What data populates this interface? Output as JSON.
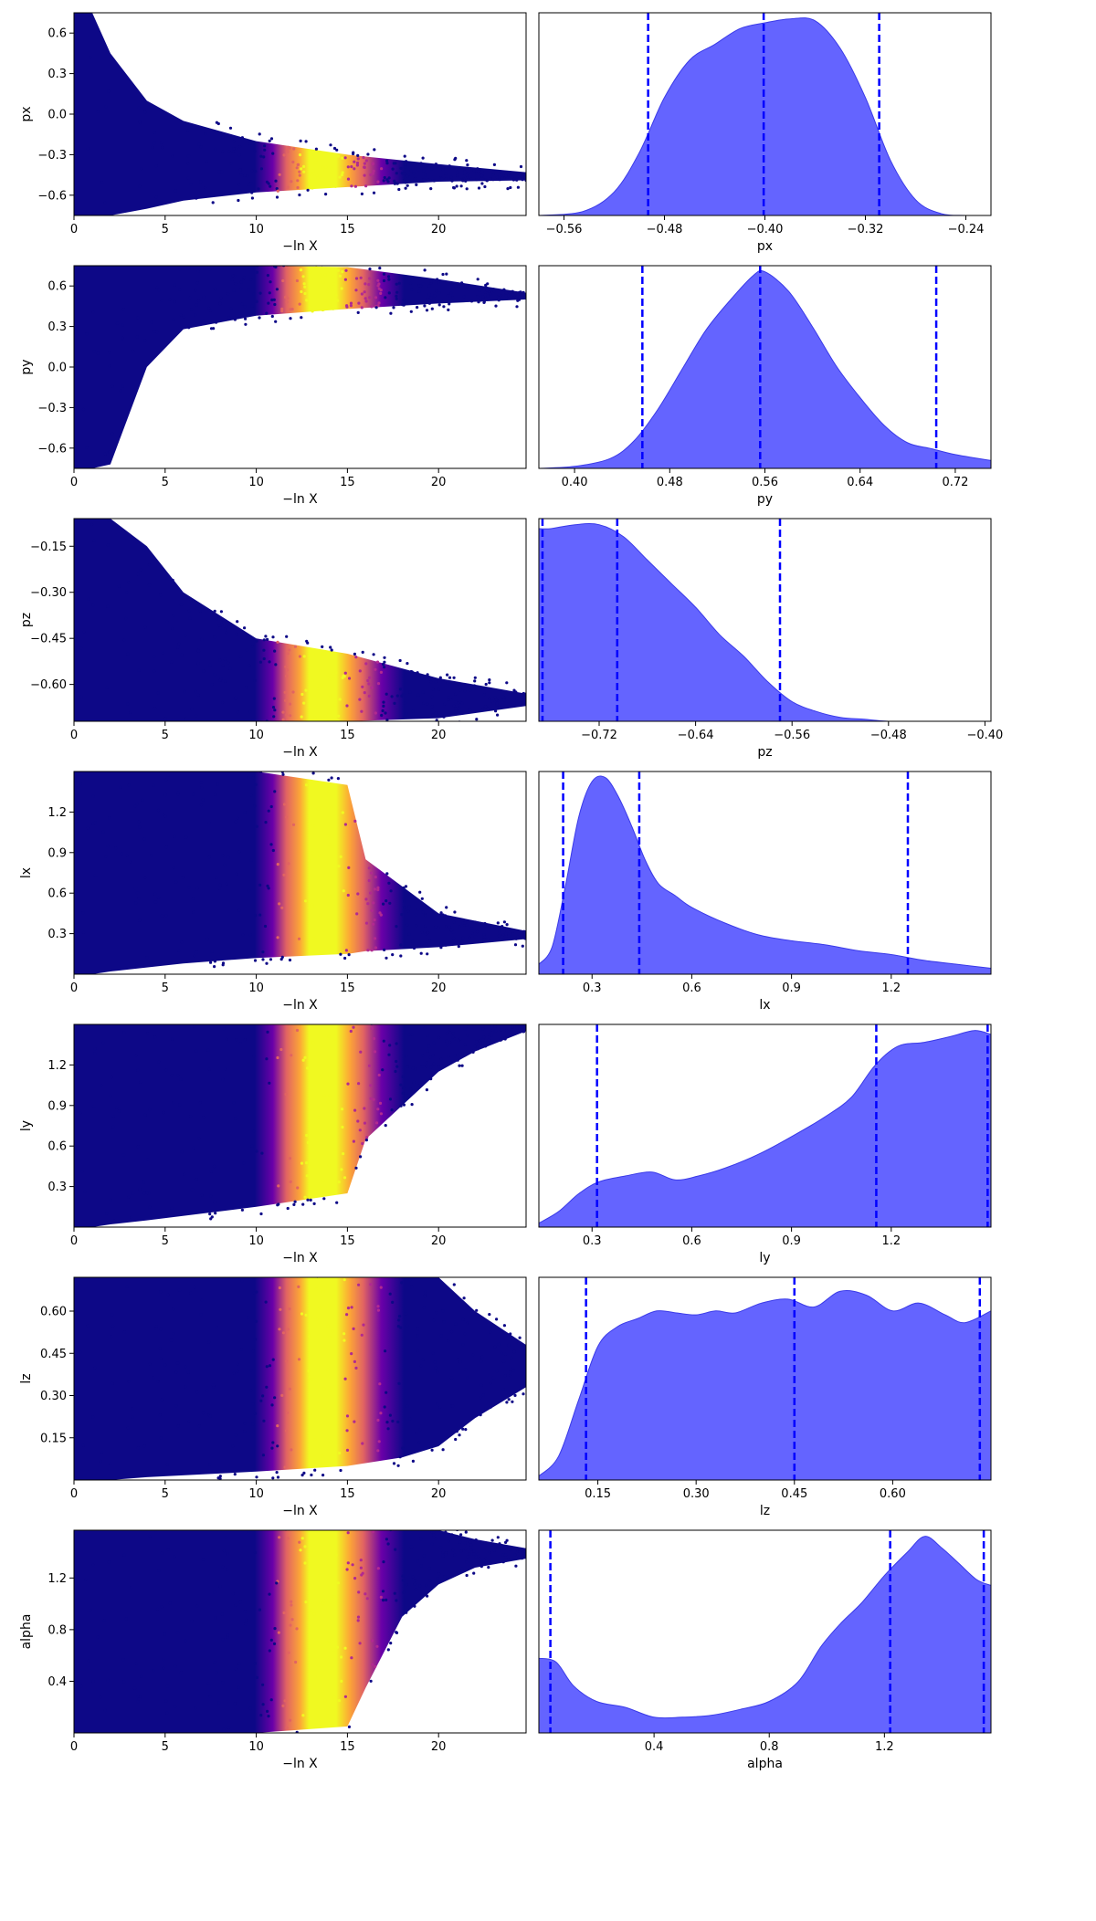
{
  "trace_xlabel": "−ln X",
  "colors": {
    "posterior_fill": "#6464ff",
    "posterior_edge": "#3a3ae8",
    "quantile_line": "#0000ff",
    "colormap": [
      "#0d0887",
      "#6a00a8",
      "#b12a90",
      "#e16462",
      "#fca636",
      "#f0f921"
    ]
  },
  "chart_data": [
    {
      "type": "scatter",
      "param": "px",
      "panel": "trace",
      "xlabel": "−ln X",
      "ylabel": "px",
      "xlim": [
        0,
        24.8
      ],
      "ylim": [
        -0.75,
        0.75
      ],
      "xticks": [
        0,
        5,
        10,
        15,
        20
      ],
      "yticks": [
        -0.6,
        -0.3,
        0.0,
        0.3,
        0.6
      ],
      "ytick_labels": [
        "−0.6",
        "−0.3",
        "0.0",
        "0.3",
        "0.6"
      ],
      "envelope": {
        "x": [
          0,
          1,
          2,
          4,
          6,
          10,
          15,
          20,
          24.8
        ],
        "lo": [
          -0.75,
          -0.75,
          -0.75,
          -0.7,
          -0.64,
          -0.58,
          -0.54,
          -0.5,
          -0.49
        ],
        "hi": [
          0.75,
          0.75,
          0.45,
          0.1,
          -0.05,
          -0.2,
          -0.3,
          -0.37,
          -0.43
        ]
      }
    },
    {
      "type": "area",
      "param": "px",
      "panel": "posterior",
      "xlabel": "px",
      "xlim": [
        -0.58,
        -0.22
      ],
      "xticks": [
        -0.56,
        -0.48,
        -0.4,
        -0.32,
        -0.24
      ],
      "xtick_labels": [
        "−0.56",
        "−0.48",
        "−0.40",
        "−0.32",
        "−0.24"
      ],
      "quantiles": [
        -0.493,
        -0.401,
        -0.309
      ],
      "x": [
        -0.58,
        -0.545,
        -0.52,
        -0.5,
        -0.48,
        -0.46,
        -0.44,
        -0.42,
        -0.4,
        -0.38,
        -0.36,
        -0.34,
        -0.32,
        -0.3,
        -0.28,
        -0.26,
        -0.24,
        -0.22
      ],
      "y": [
        0.0,
        0.02,
        0.12,
        0.32,
        0.6,
        0.79,
        0.87,
        0.95,
        0.98,
        1.0,
        0.99,
        0.85,
        0.6,
        0.28,
        0.08,
        0.01,
        0.0,
        0.0
      ]
    },
    {
      "type": "scatter",
      "param": "py",
      "panel": "trace",
      "xlabel": "−ln X",
      "ylabel": "py",
      "xlim": [
        0,
        24.8
      ],
      "ylim": [
        -0.75,
        0.75
      ],
      "xticks": [
        0,
        5,
        10,
        15,
        20
      ],
      "yticks": [
        -0.6,
        -0.3,
        0.0,
        0.3,
        0.6
      ],
      "ytick_labels": [
        "−0.6",
        "−0.3",
        "0.0",
        "0.3",
        "0.6"
      ],
      "envelope": {
        "x": [
          0,
          1,
          2,
          4,
          6,
          10,
          15,
          20,
          24.8
        ],
        "lo": [
          -0.75,
          -0.75,
          -0.72,
          0.0,
          0.28,
          0.38,
          0.43,
          0.47,
          0.5
        ],
        "hi": [
          0.75,
          0.75,
          0.75,
          0.75,
          0.75,
          0.75,
          0.74,
          0.65,
          0.55
        ]
      }
    },
    {
      "type": "area",
      "param": "py",
      "panel": "posterior",
      "xlabel": "py",
      "xlim": [
        0.37,
        0.75
      ],
      "xticks": [
        0.4,
        0.48,
        0.56,
        0.64,
        0.72
      ],
      "xtick_labels": [
        "0.40",
        "0.48",
        "0.56",
        "0.64",
        "0.72"
      ],
      "quantiles": [
        0.457,
        0.556,
        0.704
      ],
      "x": [
        0.37,
        0.4,
        0.43,
        0.45,
        0.47,
        0.49,
        0.51,
        0.53,
        0.55,
        0.56,
        0.58,
        0.6,
        0.62,
        0.64,
        0.66,
        0.68,
        0.7,
        0.72,
        0.75
      ],
      "y": [
        0.0,
        0.01,
        0.05,
        0.14,
        0.3,
        0.5,
        0.7,
        0.85,
        0.98,
        1.0,
        0.9,
        0.72,
        0.52,
        0.36,
        0.22,
        0.13,
        0.1,
        0.07,
        0.04
      ]
    },
    {
      "type": "scatter",
      "param": "pz",
      "panel": "trace",
      "xlabel": "−ln X",
      "ylabel": "pz",
      "xlim": [
        0,
        24.8
      ],
      "ylim": [
        -0.72,
        -0.06
      ],
      "xticks": [
        0,
        5,
        10,
        15,
        20
      ],
      "yticks": [
        -0.6,
        -0.45,
        -0.3,
        -0.15
      ],
      "ytick_labels": [
        "−0.60",
        "−0.45",
        "−0.30",
        "−0.15"
      ],
      "envelope": {
        "x": [
          0,
          1,
          2,
          4,
          6,
          10,
          15,
          20,
          24.8
        ],
        "lo": [
          -0.72,
          -0.72,
          -0.72,
          -0.72,
          -0.72,
          -0.72,
          -0.72,
          -0.71,
          -0.67
        ],
        "hi": [
          -0.06,
          -0.06,
          -0.06,
          -0.15,
          -0.3,
          -0.45,
          -0.5,
          -0.58,
          -0.63
        ]
      }
    },
    {
      "type": "area",
      "param": "pz",
      "panel": "posterior",
      "xlabel": "pz",
      "xlim": [
        -0.77,
        -0.395
      ],
      "xticks": [
        -0.72,
        -0.64,
        -0.56,
        -0.48,
        -0.4
      ],
      "xtick_labels": [
        "−0.72",
        "−0.64",
        "−0.56",
        "−0.48",
        "−0.40"
      ],
      "quantiles": [
        -0.767,
        -0.705,
        -0.57
      ],
      "x": [
        -0.77,
        -0.76,
        -0.74,
        -0.72,
        -0.7,
        -0.68,
        -0.66,
        -0.64,
        -0.62,
        -0.6,
        -0.58,
        -0.56,
        -0.54,
        -0.52,
        -0.5,
        -0.48,
        -0.45,
        -0.395
      ],
      "y": [
        0.98,
        0.98,
        1.0,
        1.0,
        0.94,
        0.82,
        0.7,
        0.58,
        0.44,
        0.33,
        0.2,
        0.1,
        0.05,
        0.02,
        0.01,
        0.0,
        0.0,
        0.0
      ]
    },
    {
      "type": "scatter",
      "param": "lx",
      "panel": "trace",
      "xlabel": "−ln X",
      "ylabel": "lx",
      "xlim": [
        0,
        24.8
      ],
      "ylim": [
        0.0,
        1.5
      ],
      "xticks": [
        0,
        5,
        10,
        15,
        20
      ],
      "yticks": [
        0.3,
        0.6,
        0.9,
        1.2
      ],
      "ytick_labels": [
        "0.3",
        "0.6",
        "0.9",
        "1.2"
      ],
      "envelope": {
        "x": [
          0,
          1,
          2,
          4,
          6,
          10,
          15,
          16,
          20,
          24.8
        ],
        "lo": [
          0.0,
          0.0,
          0.02,
          0.05,
          0.08,
          0.12,
          0.15,
          0.17,
          0.2,
          0.26
        ],
        "hi": [
          1.5,
          1.5,
          1.5,
          1.5,
          1.5,
          1.5,
          1.4,
          0.85,
          0.45,
          0.32
        ]
      }
    },
    {
      "type": "area",
      "param": "lx",
      "panel": "posterior",
      "xlabel": "lx",
      "xlim": [
        0.14,
        1.5
      ],
      "xticks": [
        0.3,
        0.6,
        0.9,
        1.2
      ],
      "xtick_labels": [
        "0.3",
        "0.6",
        "0.9",
        "1.2"
      ],
      "quantiles": [
        0.213,
        0.442,
        1.25
      ],
      "x": [
        0.14,
        0.18,
        0.22,
        0.26,
        0.3,
        0.34,
        0.38,
        0.42,
        0.46,
        0.5,
        0.55,
        0.6,
        0.7,
        0.8,
        0.9,
        1.0,
        1.1,
        1.2,
        1.3,
        1.4,
        1.5
      ],
      "y": [
        0.05,
        0.14,
        0.45,
        0.8,
        0.98,
        1.0,
        0.9,
        0.75,
        0.58,
        0.46,
        0.4,
        0.34,
        0.26,
        0.2,
        0.17,
        0.15,
        0.12,
        0.1,
        0.07,
        0.05,
        0.03
      ]
    },
    {
      "type": "scatter",
      "param": "ly",
      "panel": "trace",
      "xlabel": "−ln X",
      "ylabel": "ly",
      "xlim": [
        0,
        24.8
      ],
      "ylim": [
        0.0,
        1.5
      ],
      "xticks": [
        0,
        5,
        10,
        15,
        20
      ],
      "yticks": [
        0.3,
        0.6,
        0.9,
        1.2
      ],
      "ytick_labels": [
        "0.3",
        "0.6",
        "0.9",
        "1.2"
      ],
      "envelope": {
        "x": [
          0,
          1,
          2,
          4,
          10,
          15,
          16,
          18,
          20,
          22,
          24.8
        ],
        "lo": [
          0.0,
          0.0,
          0.02,
          0.05,
          0.15,
          0.25,
          0.65,
          0.9,
          1.15,
          1.3,
          1.45
        ],
        "hi": [
          1.5,
          1.5,
          1.5,
          1.5,
          1.5,
          1.5,
          1.5,
          1.5,
          1.5,
          1.5,
          1.5
        ]
      }
    },
    {
      "type": "area",
      "param": "ly",
      "panel": "posterior",
      "xlabel": "ly",
      "xlim": [
        0.14,
        1.5
      ],
      "xticks": [
        0.3,
        0.6,
        0.9,
        1.2
      ],
      "xtick_labels": [
        "0.3",
        "0.6",
        "0.9",
        "1.2"
      ],
      "quantiles": [
        0.315,
        1.155,
        1.49
      ],
      "x": [
        0.14,
        0.2,
        0.26,
        0.32,
        0.4,
        0.48,
        0.55,
        0.62,
        0.7,
        0.8,
        0.9,
        1.0,
        1.08,
        1.15,
        1.22,
        1.3,
        1.38,
        1.45,
        1.5
      ],
      "y": [
        0.02,
        0.08,
        0.17,
        0.23,
        0.26,
        0.28,
        0.24,
        0.26,
        0.3,
        0.37,
        0.46,
        0.56,
        0.66,
        0.82,
        0.92,
        0.94,
        0.97,
        1.0,
        0.98
      ]
    },
    {
      "type": "scatter",
      "param": "lz",
      "panel": "trace",
      "xlabel": "−ln X",
      "ylabel": "lz",
      "xlim": [
        0,
        24.8
      ],
      "ylim": [
        0.0,
        0.72
      ],
      "xticks": [
        0,
        5,
        10,
        15,
        20
      ],
      "yticks": [
        0.15,
        0.3,
        0.45,
        0.6
      ],
      "ytick_labels": [
        "0.15",
        "0.30",
        "0.45",
        "0.60"
      ],
      "envelope": {
        "x": [
          0,
          1,
          2,
          4,
          10,
          15,
          18,
          20,
          22,
          24.8
        ],
        "lo": [
          0.0,
          0.0,
          0.0,
          0.01,
          0.03,
          0.05,
          0.08,
          0.12,
          0.22,
          0.33
        ],
        "hi": [
          0.72,
          0.72,
          0.72,
          0.72,
          0.72,
          0.72,
          0.72,
          0.72,
          0.6,
          0.48
        ]
      }
    },
    {
      "type": "area",
      "param": "lz",
      "panel": "posterior",
      "xlabel": "lz",
      "xlim": [
        0.06,
        0.75
      ],
      "xticks": [
        0.15,
        0.3,
        0.45,
        0.6
      ],
      "xtick_labels": [
        "0.15",
        "0.30",
        "0.45",
        "0.60"
      ],
      "quantiles": [
        0.132,
        0.45,
        0.733
      ],
      "x": [
        0.06,
        0.09,
        0.12,
        0.15,
        0.18,
        0.21,
        0.24,
        0.27,
        0.3,
        0.33,
        0.36,
        0.4,
        0.44,
        0.48,
        0.52,
        0.56,
        0.6,
        0.64,
        0.68,
        0.71,
        0.75
      ],
      "y": [
        0.02,
        0.12,
        0.4,
        0.68,
        0.78,
        0.82,
        0.86,
        0.85,
        0.84,
        0.86,
        0.85,
        0.9,
        0.92,
        0.88,
        0.96,
        0.94,
        0.86,
        0.9,
        0.84,
        0.8,
        0.86
      ]
    },
    {
      "type": "scatter",
      "param": "alpha",
      "panel": "trace",
      "xlabel": "−ln X",
      "ylabel": "alpha",
      "xlim": [
        0,
        24.8
      ],
      "ylim": [
        0.0,
        1.57
      ],
      "xticks": [
        0,
        5,
        10,
        15,
        20
      ],
      "yticks": [
        0.4,
        0.8,
        1.2
      ],
      "ytick_labels": [
        "0.4",
        "0.8",
        "1.2"
      ],
      "envelope": {
        "x": [
          0,
          1,
          2,
          4,
          10,
          15,
          16,
          18,
          20,
          22,
          24.8
        ],
        "lo": [
          0.0,
          0.0,
          0.0,
          0.0,
          0.0,
          0.05,
          0.35,
          0.9,
          1.15,
          1.28,
          1.35
        ],
        "hi": [
          1.57,
          1.57,
          1.57,
          1.57,
          1.57,
          1.57,
          1.57,
          1.57,
          1.57,
          1.5,
          1.43
        ]
      }
    },
    {
      "type": "area",
      "param": "alpha",
      "panel": "posterior",
      "xlabel": "alpha",
      "xlim": [
        0.0,
        1.57
      ],
      "xticks": [
        0.4,
        0.8,
        1.2
      ],
      "xtick_labels": [
        "0.4",
        "0.8",
        "1.2"
      ],
      "quantiles": [
        0.04,
        1.22,
        1.545
      ],
      "x": [
        0.0,
        0.06,
        0.12,
        0.2,
        0.3,
        0.4,
        0.5,
        0.6,
        0.7,
        0.8,
        0.9,
        0.98,
        1.05,
        1.12,
        1.2,
        1.28,
        1.34,
        1.4,
        1.46,
        1.52,
        1.57
      ],
      "y": [
        0.38,
        0.36,
        0.24,
        0.16,
        0.13,
        0.08,
        0.08,
        0.09,
        0.12,
        0.16,
        0.26,
        0.44,
        0.56,
        0.66,
        0.8,
        0.92,
        1.0,
        0.94,
        0.86,
        0.78,
        0.75
      ]
    }
  ]
}
